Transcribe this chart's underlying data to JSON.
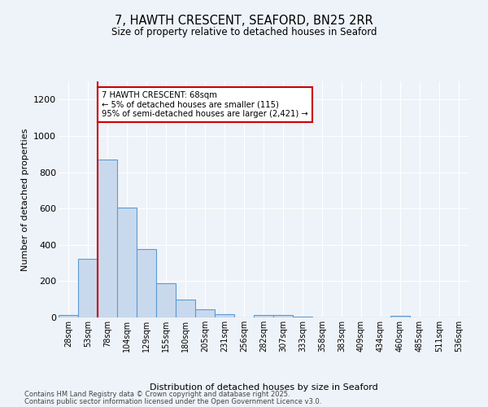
{
  "title_line1": "7, HAWTH CRESCENT, SEAFORD, BN25 2RR",
  "title_line2": "Size of property relative to detached houses in Seaford",
  "xlabel": "Distribution of detached houses by size in Seaford",
  "ylabel": "Number of detached properties",
  "bin_labels": [
    "28sqm",
    "53sqm",
    "78sqm",
    "104sqm",
    "129sqm",
    "155sqm",
    "180sqm",
    "205sqm",
    "231sqm",
    "256sqm",
    "282sqm",
    "307sqm",
    "333sqm",
    "358sqm",
    "383sqm",
    "409sqm",
    "434sqm",
    "460sqm",
    "485sqm",
    "511sqm",
    "536sqm"
  ],
  "bar_values": [
    13,
    323,
    868,
    605,
    375,
    188,
    100,
    46,
    18,
    0,
    15,
    15,
    5,
    0,
    0,
    0,
    0,
    10,
    0,
    0,
    0
  ],
  "bar_color": "#c9d9ed",
  "bar_edge_color": "#5b9bd5",
  "ylim": [
    0,
    1300
  ],
  "yticks": [
    0,
    200,
    400,
    600,
    800,
    1000,
    1200
  ],
  "annotation_box_text": "7 HAWTH CRESCENT: 68sqm\n← 5% of detached houses are smaller (115)\n95% of semi-detached houses are larger (2,421) →",
  "vline_color": "#cc0000",
  "bg_color": "#eef3f9",
  "grid_color": "#ffffff",
  "footer_line1": "Contains HM Land Registry data © Crown copyright and database right 2025.",
  "footer_line2": "Contains public sector information licensed under the Open Government Licence v3.0."
}
